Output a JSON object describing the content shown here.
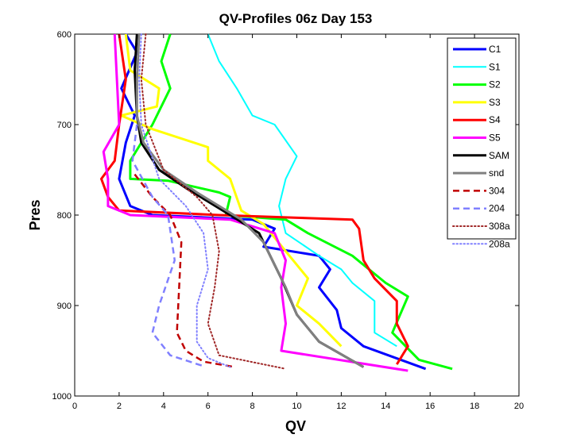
{
  "chart_data": {
    "type": "line",
    "title": "QV-Profiles 06z Day 153",
    "xlabel": "QV",
    "ylabel": "Pres",
    "xlim": [
      0,
      20
    ],
    "ylim": [
      600,
      1000
    ],
    "y_reversed": true,
    "grid": false,
    "legend_position": "top-right",
    "x_ticks": [
      "0",
      "2",
      "4",
      "6",
      "8",
      "10",
      "12",
      "14",
      "16",
      "18",
      "20"
    ],
    "y_ticks": [
      "600",
      "700",
      "800",
      "900",
      "1000"
    ],
    "series": [
      {
        "name": "C1",
        "color": "#0000ff",
        "style": "solid",
        "width": 3,
        "points": [
          [
            2.3,
            600
          ],
          [
            2.8,
            620
          ],
          [
            2.1,
            660
          ],
          [
            2.7,
            690
          ],
          [
            2.3,
            720
          ],
          [
            2.0,
            760
          ],
          [
            2.5,
            790
          ],
          [
            3.5,
            800
          ],
          [
            8,
            805
          ],
          [
            9,
            815
          ],
          [
            8.5,
            835
          ],
          [
            11,
            845
          ],
          [
            11.5,
            860
          ],
          [
            11,
            880
          ],
          [
            11.8,
            905
          ],
          [
            12,
            925
          ],
          [
            13,
            945
          ],
          [
            15.8,
            970
          ]
        ]
      },
      {
        "name": "S1",
        "color": "#00ffff",
        "style": "solid",
        "width": 2,
        "points": [
          [
            6.0,
            600
          ],
          [
            6.5,
            630
          ],
          [
            7.3,
            660
          ],
          [
            8.0,
            690
          ],
          [
            9.0,
            700
          ],
          [
            10.0,
            735
          ],
          [
            9.5,
            760
          ],
          [
            9.2,
            790
          ],
          [
            9.5,
            820
          ],
          [
            11.0,
            845
          ],
          [
            12.0,
            860
          ],
          [
            12.5,
            875
          ],
          [
            13.5,
            895
          ],
          [
            13.5,
            930
          ],
          [
            14.5,
            945
          ]
        ]
      },
      {
        "name": "S2",
        "color": "#00ff00",
        "style": "solid",
        "width": 3,
        "points": [
          [
            4.3,
            600
          ],
          [
            3.9,
            630
          ],
          [
            4.3,
            660
          ],
          [
            3.5,
            700
          ],
          [
            2.5,
            740
          ],
          [
            2.5,
            760
          ],
          [
            4.2,
            762
          ],
          [
            6.5,
            775
          ],
          [
            7,
            780
          ],
          [
            6.8,
            800
          ],
          [
            9.5,
            805
          ],
          [
            10.5,
            820
          ],
          [
            12.5,
            845
          ],
          [
            14,
            875
          ],
          [
            15,
            890
          ],
          [
            14.3,
            930
          ],
          [
            15.5,
            960
          ],
          [
            17,
            970
          ]
        ]
      },
      {
        "name": "S3",
        "color": "#ffff00",
        "style": "solid",
        "width": 3,
        "points": [
          [
            2.3,
            600
          ],
          [
            2.5,
            640
          ],
          [
            3.8,
            660
          ],
          [
            3.7,
            680
          ],
          [
            2.1,
            690
          ],
          [
            3.5,
            705
          ],
          [
            6.0,
            725
          ],
          [
            6.0,
            740
          ],
          [
            7.0,
            760
          ],
          [
            7.5,
            795
          ],
          [
            8.5,
            810
          ],
          [
            9.5,
            840
          ],
          [
            10.5,
            870
          ],
          [
            10.0,
            900
          ],
          [
            11,
            920
          ],
          [
            12,
            945
          ]
        ]
      },
      {
        "name": "S4",
        "color": "#ff0000",
        "style": "solid",
        "width": 3,
        "points": [
          [
            2.0,
            600
          ],
          [
            2.3,
            650
          ],
          [
            2.0,
            700
          ],
          [
            1.8,
            740
          ],
          [
            1.2,
            760
          ],
          [
            1.5,
            780
          ],
          [
            2.0,
            795
          ],
          [
            6.5,
            800
          ],
          [
            10.0,
            803
          ],
          [
            12.5,
            805
          ],
          [
            12.8,
            815
          ],
          [
            13,
            850
          ],
          [
            13.5,
            870
          ],
          [
            14.5,
            895
          ],
          [
            14.5,
            920
          ],
          [
            15,
            945
          ],
          [
            14.5,
            965
          ]
        ]
      },
      {
        "name": "S5",
        "color": "#ff00ff",
        "style": "solid",
        "width": 3,
        "points": [
          [
            1.8,
            600
          ],
          [
            1.9,
            650
          ],
          [
            2.0,
            700
          ],
          [
            1.3,
            730
          ],
          [
            1.5,
            760
          ],
          [
            1.5,
            790
          ],
          [
            2.5,
            800
          ],
          [
            7.0,
            805
          ],
          [
            9.0,
            820
          ],
          [
            9.5,
            850
          ],
          [
            9.3,
            880
          ],
          [
            9.5,
            920
          ],
          [
            9.3,
            950
          ],
          [
            15.0,
            972
          ]
        ]
      },
      {
        "name": "SAM",
        "color": "#000000",
        "style": "solid",
        "width": 3,
        "points": [
          [
            2.8,
            600
          ],
          [
            2.7,
            640
          ],
          [
            2.8,
            690
          ],
          [
            3.0,
            720
          ],
          [
            3.8,
            750
          ],
          [
            5.0,
            770
          ],
          [
            7.0,
            800
          ],
          [
            8.3,
            820
          ],
          [
            9.3,
            870
          ],
          [
            10.0,
            910
          ],
          [
            11.0,
            940
          ],
          [
            13.0,
            968
          ]
        ]
      },
      {
        "name": "snd",
        "color": "#808080",
        "style": "solid",
        "width": 3,
        "points": [
          [
            2.9,
            600
          ],
          [
            2.8,
            650
          ],
          [
            2.8,
            690
          ],
          [
            3.1,
            720
          ],
          [
            4.0,
            750
          ],
          [
            5.5,
            775
          ],
          [
            7.5,
            805
          ],
          [
            8.5,
            830
          ],
          [
            9.5,
            880
          ],
          [
            10.0,
            910
          ],
          [
            11.0,
            940
          ],
          [
            13.0,
            968
          ]
        ]
      },
      {
        "name": "304",
        "color": "#c00000",
        "style": "dashed",
        "width": 2.5,
        "points": [
          [
            2.7,
            755
          ],
          [
            3.5,
            780
          ],
          [
            4.3,
            800
          ],
          [
            4.8,
            830
          ],
          [
            4.7,
            880
          ],
          [
            4.6,
            930
          ],
          [
            5.0,
            950
          ],
          [
            5.8,
            962
          ],
          [
            7.2,
            968
          ]
        ]
      },
      {
        "name": "204",
        "color": "#8080ff",
        "style": "dashed",
        "width": 2.5,
        "points": [
          [
            2.8,
            700
          ],
          [
            2.6,
            740
          ],
          [
            3.5,
            780
          ],
          [
            4.2,
            800
          ],
          [
            4.5,
            850
          ],
          [
            3.8,
            900
          ],
          [
            3.5,
            930
          ],
          [
            4.3,
            955
          ],
          [
            5.8,
            967
          ]
        ]
      },
      {
        "name": "308a",
        "color": "#a02828",
        "style": "dotted",
        "width": 2,
        "points": [
          [
            3.2,
            600
          ],
          [
            3.0,
            650
          ],
          [
            3.2,
            700
          ],
          [
            4.0,
            750
          ],
          [
            5.5,
            780
          ],
          [
            6.2,
            800
          ],
          [
            6.5,
            840
          ],
          [
            6.3,
            880
          ],
          [
            6.0,
            920
          ],
          [
            6.5,
            955
          ],
          [
            9.5,
            970
          ]
        ]
      },
      {
        "name": "208a",
        "color": "#8080ff",
        "style": "dotted",
        "width": 2,
        "points": [
          [
            3.0,
            600
          ],
          [
            2.9,
            650
          ],
          [
            3.0,
            700
          ],
          [
            3.8,
            760
          ],
          [
            5.0,
            790
          ],
          [
            5.8,
            820
          ],
          [
            6.0,
            860
          ],
          [
            5.5,
            900
          ],
          [
            5.5,
            940
          ],
          [
            6.0,
            958
          ],
          [
            7.0,
            968
          ]
        ]
      }
    ]
  }
}
